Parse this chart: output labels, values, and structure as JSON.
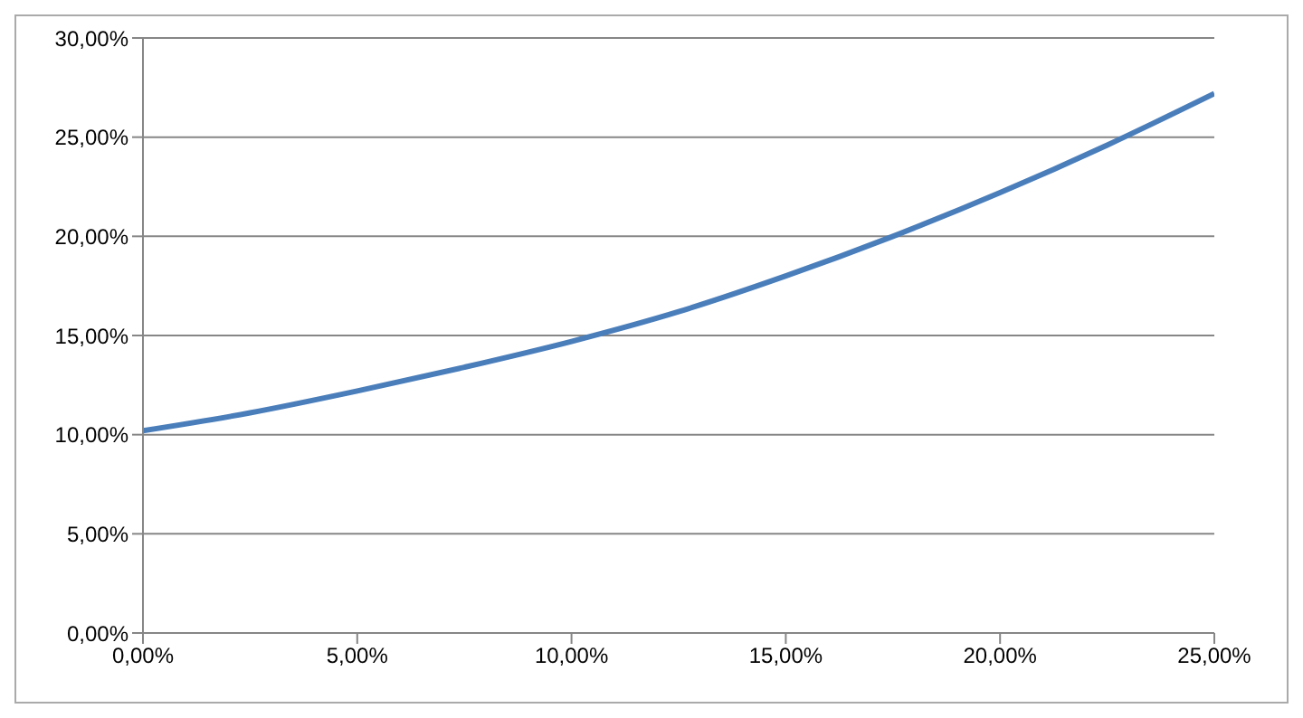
{
  "chart_data": {
    "type": "line",
    "x": [
      0,
      2.5,
      5,
      7.5,
      10,
      12.5,
      15,
      17.5,
      20,
      22.5,
      25
    ],
    "series": [
      {
        "color": "#4a7ebb",
        "values": [
          10.2,
          11.1,
          12.2,
          13.4,
          14.7,
          16.2,
          18.0,
          20.0,
          22.2,
          24.6,
          27.2
        ]
      }
    ],
    "xlim": [
      0,
      25
    ],
    "xticks": [
      {
        "value": 0,
        "label": "0,00%"
      },
      {
        "value": 5,
        "label": "5,00%"
      },
      {
        "value": 10,
        "label": "10,00%"
      },
      {
        "value": 15,
        "label": "15,00%"
      },
      {
        "value": 20,
        "label": "20,00%"
      },
      {
        "value": 25,
        "label": "25,00%"
      }
    ],
    "ylim": [
      0,
      30
    ],
    "yticks": [
      {
        "value": 0,
        "label": "0,00%"
      },
      {
        "value": 5,
        "label": "5,00%"
      },
      {
        "value": 10,
        "label": "10,00%"
      },
      {
        "value": 15,
        "label": "15,00%"
      },
      {
        "value": 20,
        "label": "20,00%"
      },
      {
        "value": 25,
        "label": "25,00%"
      },
      {
        "value": 30,
        "label": "30,00%"
      }
    ],
    "grid": "y",
    "marker": "none",
    "line_style": "solid",
    "legend": false
  }
}
